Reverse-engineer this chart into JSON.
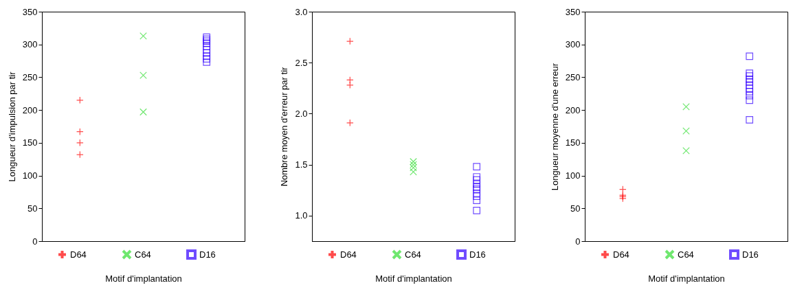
{
  "chart_data": [
    {
      "type": "scatter",
      "ylabel": "Longueur d'impulsion par tir",
      "xlabel": "Motif d'implantation",
      "categories": [
        null,
        null,
        null
      ],
      "ylim": [
        0,
        350
      ],
      "yticks": [
        0,
        50,
        100,
        150,
        200,
        250,
        300,
        350
      ],
      "tick_labels": "y",
      "legend": "bottom",
      "series": [
        {
          "name": "D64",
          "color": "#ff0000",
          "marker": "cross",
          "values": [
            215,
            null,
            null
          ]
        },
        {
          "color": "#ff0000",
          "marker": "cross",
          "values": [
            167,
            null,
            null
          ]
        },
        {
          "color": "#ff0000",
          "marker": "cross",
          "values": [
            150,
            null,
            null
          ]
        },
        {
          "color": "#ff0000",
          "marker": "cross",
          "values": [
            132,
            null,
            null
          ]
        },
        {
          "name": "C64",
          "color": "#33dd33",
          "marker": "x",
          "values": [
            null,
            313,
            null
          ]
        },
        {
          "color": "#33dd33",
          "marker": "x",
          "values": [
            null,
            253,
            null
          ]
        },
        {
          "color": "#33dd33",
          "marker": "x",
          "values": [
            null,
            197,
            null
          ]
        },
        {
          "name": "D16",
          "color": "#3300ff",
          "marker": "square",
          "values": [
            null,
            null,
            311
          ]
        },
        {
          "color": "#3300ff",
          "marker": "square",
          "values": [
            null,
            null,
            308
          ]
        },
        {
          "color": "#3300ff",
          "marker": "square",
          "values": [
            null,
            null,
            305
          ]
        },
        {
          "color": "#3300ff",
          "marker": "square",
          "values": [
            null,
            null,
            302
          ]
        },
        {
          "color": "#3300ff",
          "marker": "square",
          "values": [
            null,
            null,
            297
          ]
        },
        {
          "color": "#3300ff",
          "marker": "square",
          "values": [
            null,
            null,
            292
          ]
        },
        {
          "color": "#3300ff",
          "marker": "square",
          "values": [
            null,
            null,
            287
          ]
        },
        {
          "color": "#3300ff",
          "marker": "square",
          "values": [
            null,
            null,
            282
          ]
        },
        {
          "color": "#3300ff",
          "marker": "square",
          "values": [
            null,
            null,
            278
          ]
        },
        {
          "color": "#3300ff",
          "marker": "square",
          "values": [
            null,
            null,
            273
          ]
        }
      ]
    },
    {
      "type": "scatter",
      "ylabel": "Nombre moyen d'erreur par tir",
      "xlabel": "Motif d'implantation",
      "categories": [
        null,
        null,
        null
      ],
      "ylim": [
        0.75,
        3.0
      ],
      "yticks": [
        {
          "value": 1,
          "label": "1.0"
        },
        1.5,
        {
          "value": 2,
          "label": "2.0"
        },
        2.5,
        {
          "value": 3,
          "label": "3.0"
        }
      ],
      "tick_labels": "y",
      "legend": "bottom",
      "series": [
        {
          "name": "D64",
          "color": "#ff0000",
          "marker": "cross",
          "values": [
            2.71,
            null,
            null
          ]
        },
        {
          "color": "#ff0000",
          "marker": "cross",
          "values": [
            2.33,
            null,
            null
          ]
        },
        {
          "color": "#ff0000",
          "marker": "cross",
          "values": [
            2.28,
            null,
            null
          ]
        },
        {
          "color": "#ff0000",
          "marker": "cross",
          "values": [
            1.91,
            null,
            null
          ]
        },
        {
          "name": "C64",
          "color": "#33dd33",
          "marker": "x",
          "values": [
            null,
            1.53,
            null
          ]
        },
        {
          "color": "#33dd33",
          "marker": "x",
          "values": [
            null,
            1.5,
            null
          ]
        },
        {
          "color": "#33dd33",
          "marker": "x",
          "values": [
            null,
            1.47,
            null
          ]
        },
        {
          "color": "#33dd33",
          "marker": "x",
          "values": [
            null,
            1.43,
            null
          ]
        },
        {
          "name": "D16",
          "color": "#3300ff",
          "marker": "square",
          "values": [
            null,
            null,
            1.48
          ]
        },
        {
          "color": "#3300ff",
          "marker": "square",
          "values": [
            null,
            null,
            1.38
          ]
        },
        {
          "color": "#3300ff",
          "marker": "square",
          "values": [
            null,
            null,
            1.35
          ]
        },
        {
          "color": "#3300ff",
          "marker": "square",
          "values": [
            null,
            null,
            1.31
          ]
        },
        {
          "color": "#3300ff",
          "marker": "square",
          "values": [
            null,
            null,
            1.28
          ]
        },
        {
          "color": "#3300ff",
          "marker": "square",
          "values": [
            null,
            null,
            1.26
          ]
        },
        {
          "color": "#3300ff",
          "marker": "square",
          "values": [
            null,
            null,
            1.22
          ]
        },
        {
          "color": "#3300ff",
          "marker": "square",
          "values": [
            null,
            null,
            1.19
          ]
        },
        {
          "color": "#3300ff",
          "marker": "square",
          "values": [
            null,
            null,
            1.15
          ]
        },
        {
          "color": "#3300ff",
          "marker": "square",
          "values": [
            null,
            null,
            1.05
          ]
        }
      ]
    },
    {
      "type": "scatter",
      "ylabel": "Longueur moyenne d'une erreur",
      "xlabel": "Motif d'implantation",
      "categories": [
        null,
        null,
        null
      ],
      "ylim": [
        0,
        350
      ],
      "yticks": [
        0,
        50,
        100,
        150,
        200,
        250,
        300,
        350
      ],
      "tick_labels": "y",
      "legend": "bottom",
      "series": [
        {
          "name": "D64",
          "color": "#ff0000",
          "marker": "cross",
          "values": [
            79,
            null,
            null
          ]
        },
        {
          "color": "#ff0000",
          "marker": "cross",
          "values": [
            70,
            null,
            null
          ]
        },
        {
          "color": "#ff0000",
          "marker": "cross",
          "values": [
            68,
            null,
            null
          ]
        },
        {
          "color": "#ff0000",
          "marker": "cross",
          "values": [
            65,
            null,
            null
          ]
        },
        {
          "name": "C64",
          "color": "#33dd33",
          "marker": "x",
          "values": [
            null,
            205,
            null
          ]
        },
        {
          "color": "#33dd33",
          "marker": "x",
          "values": [
            null,
            168,
            null
          ]
        },
        {
          "color": "#33dd33",
          "marker": "x",
          "values": [
            null,
            138,
            null
          ]
        },
        {
          "name": "D16",
          "color": "#3300ff",
          "marker": "square",
          "values": [
            null,
            null,
            282
          ]
        },
        {
          "color": "#3300ff",
          "marker": "square",
          "values": [
            null,
            null,
            256
          ]
        },
        {
          "color": "#3300ff",
          "marker": "square",
          "values": [
            null,
            null,
            252
          ]
        },
        {
          "color": "#3300ff",
          "marker": "square",
          "values": [
            null,
            null,
            247
          ]
        },
        {
          "color": "#3300ff",
          "marker": "square",
          "values": [
            null,
            null,
            243
          ]
        },
        {
          "color": "#3300ff",
          "marker": "square",
          "values": [
            null,
            null,
            238
          ]
        },
        {
          "color": "#3300ff",
          "marker": "square",
          "values": [
            null,
            null,
            233
          ]
        },
        {
          "color": "#3300ff",
          "marker": "square",
          "values": [
            null,
            null,
            228
          ]
        },
        {
          "color": "#3300ff",
          "marker": "square",
          "values": [
            null,
            null,
            222
          ]
        },
        {
          "color": "#3300ff",
          "marker": "square",
          "values": [
            null,
            null,
            215
          ]
        },
        {
          "color": "#3300ff",
          "marker": "square",
          "values": [
            null,
            null,
            185
          ]
        }
      ]
    }
  ]
}
